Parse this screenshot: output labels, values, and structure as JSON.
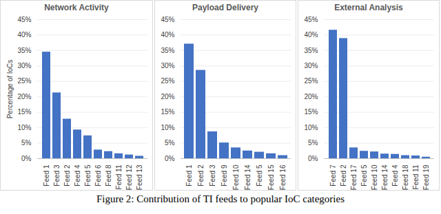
{
  "chart_data": [
    {
      "type": "bar",
      "title": "Network Activity",
      "ylabel": "Percentage of IoCs",
      "categories": [
        "Feed 1",
        "Feed 3",
        "Feed 2",
        "Feed 4",
        "Feed 5",
        "Feed 6",
        "Feed 8",
        "Feed 11",
        "Feed 12",
        "Feed 13"
      ],
      "values": [
        34.5,
        21.3,
        12.8,
        9.3,
        7.4,
        2.8,
        2.3,
        1.6,
        1.2,
        0.8
      ],
      "color": "#4472c4",
      "ylim": [
        0,
        45
      ],
      "yticks": [
        {
          "value": 0,
          "label": "0%"
        },
        {
          "value": 5,
          "label": "5%"
        },
        {
          "value": 10,
          "label": "10%"
        },
        {
          "value": 15,
          "label": "15%"
        },
        {
          "value": 20,
          "label": "20%"
        },
        {
          "value": 25,
          "label": "25%"
        },
        {
          "value": 30,
          "label": "30%"
        },
        {
          "value": 35,
          "label": "35%"
        },
        {
          "value": 40,
          "label": "40%"
        },
        {
          "value": 45,
          "label": "45%"
        }
      ],
      "grid": true
    },
    {
      "type": "bar",
      "title": "Payload Delivery",
      "categories": [
        "Feed 1",
        "Feed 2",
        "Feed 3",
        "Feed 9",
        "Feed 10",
        "Feed 14",
        "Feed 5",
        "Feed 15",
        "Feed 16"
      ],
      "values": [
        37.1,
        28.6,
        8.7,
        5.1,
        3.5,
        2.5,
        2.1,
        1.6,
        1.0
      ],
      "color": "#4472c4",
      "ylim": [
        0,
        45
      ],
      "yticks": [
        {
          "value": 0,
          "label": "0%"
        },
        {
          "value": 5,
          "label": "5%"
        },
        {
          "value": 10,
          "label": "10%"
        },
        {
          "value": 15,
          "label": "15%"
        },
        {
          "value": 20,
          "label": "20%"
        },
        {
          "value": 25,
          "label": "25%"
        },
        {
          "value": 30,
          "label": "30%"
        },
        {
          "value": 35,
          "label": "35%"
        },
        {
          "value": 40,
          "label": "40%"
        },
        {
          "value": 45,
          "label": "45%"
        }
      ],
      "grid": true
    },
    {
      "type": "bar",
      "title": "External Analysis",
      "categories": [
        "Feed 7",
        "Feed 2",
        "Feed 17",
        "Feed 5",
        "Feed 10",
        "Feed 14",
        "Feed 4",
        "Feed 18",
        "Feed 11",
        "Feed 19"
      ],
      "values": [
        41.6,
        38.9,
        3.5,
        2.4,
        2.2,
        1.5,
        1.4,
        1.0,
        0.9,
        0.5
      ],
      "color": "#4472c4",
      "ylim": [
        0,
        45
      ],
      "yticks": [
        {
          "value": 0,
          "label": "0%"
        },
        {
          "value": 5,
          "label": "5%"
        },
        {
          "value": 10,
          "label": "10%"
        },
        {
          "value": 15,
          "label": "15%"
        },
        {
          "value": 20,
          "label": "20%"
        },
        {
          "value": 25,
          "label": "25%"
        },
        {
          "value": 30,
          "label": "30%"
        },
        {
          "value": 35,
          "label": "35%"
        },
        {
          "value": 40,
          "label": "40%"
        },
        {
          "value": 45,
          "label": "45%"
        }
      ],
      "grid": true
    }
  ],
  "caption": "Figure 2: Contribution of TI feeds to popular IoC categories"
}
